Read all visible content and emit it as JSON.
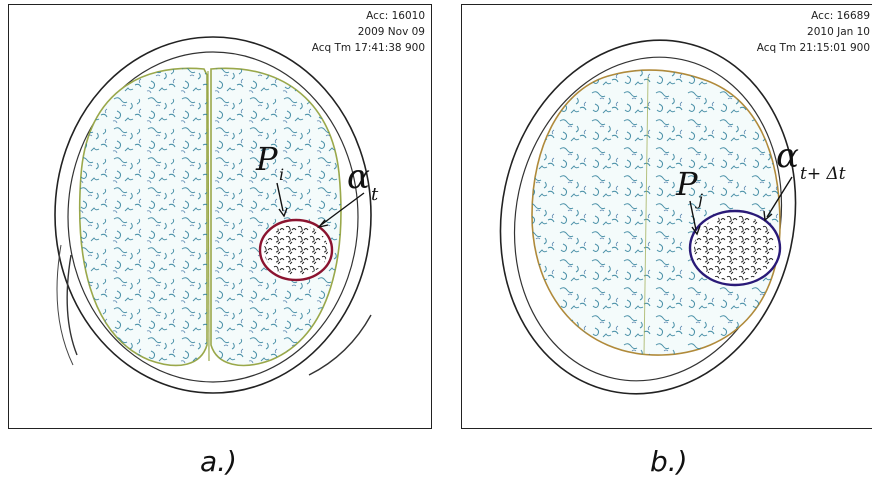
{
  "panel_a": {
    "meta": {
      "acc": "Acc: 16010",
      "date": "2009 Nov 09",
      "acq": "Acq Tm 17:41:38 900"
    },
    "label_p": "P",
    "label_p_sub": "i",
    "label_alpha": "α",
    "label_alpha_sub": "t",
    "caption": "a.)"
  },
  "panel_b": {
    "meta": {
      "acc": "Acc: 16689",
      "date": "2010 Jan 10",
      "acq": "Acq Tm 21:15:01 900"
    },
    "label_p": "P",
    "label_p_sub": "j",
    "label_alpha": "α",
    "label_alpha_sub": "t+ Δt",
    "caption": "b.)"
  },
  "colors": {
    "skull": "#222222",
    "brain_edge": "#9aa84a",
    "texture": "#2f7f9a",
    "tumor_a": "#8b1430",
    "tumor_b": "#2a1a78"
  }
}
